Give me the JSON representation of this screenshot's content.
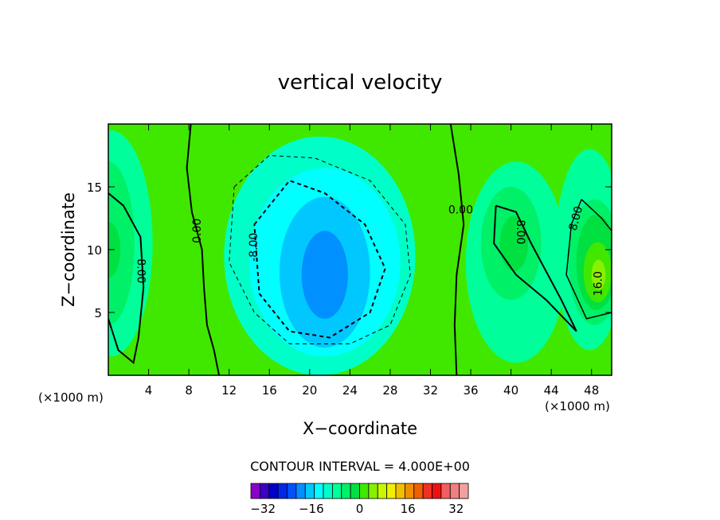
{
  "chart_data": {
    "type": "contour",
    "title": "vertical velocity",
    "xlabel": "X−coordinate",
    "ylabel": "Z−coordinate",
    "x_unit_left": "(×1000 m)",
    "x_unit_right": "(×1000 m)",
    "xlim": [
      0,
      50
    ],
    "ylim": [
      0,
      20
    ],
    "x_ticks": [
      4,
      8,
      12,
      16,
      20,
      24,
      28,
      32,
      36,
      40,
      44,
      48
    ],
    "y_ticks": [
      5,
      10,
      15
    ],
    "contour_interval_text": "CONTOUR INTERVAL = 4.000E+00",
    "contour_labels": [
      "0.00",
      "0.00",
      "8.00",
      "-8.00",
      "8.00",
      "8.00",
      "16.0"
    ],
    "colorbar": {
      "min": -36,
      "max": 36,
      "step": 4,
      "tick_values": [
        -32,
        -16,
        0,
        16,
        32
      ],
      "tick_labels": [
        "−32",
        "−16",
        "0",
        "16",
        "32"
      ],
      "colors": [
        "#8a00c8",
        "#3c00c8",
        "#0000c8",
        "#0028e6",
        "#0050ff",
        "#0090ff",
        "#00c8ff",
        "#00ffff",
        "#00ffc8",
        "#00ff9a",
        "#00f068",
        "#00e040",
        "#40e800",
        "#88f000",
        "#c8f800",
        "#f0f000",
        "#f0c000",
        "#f09000",
        "#f06000",
        "#f03020",
        "#f01010",
        "#f06060",
        "#f08080",
        "#f0a0a0"
      ]
    },
    "features": [
      {
        "name": "updraft-left",
        "x": 1,
        "z": 10,
        "peak": 10
      },
      {
        "name": "updraft-right-mid",
        "x": 40.5,
        "z": 10.5,
        "peak": 12
      },
      {
        "name": "updraft-right-core",
        "x": 48,
        "z": 8.5,
        "peak": 18
      },
      {
        "name": "downdraft-center",
        "x": 21.5,
        "z": 8,
        "peak": -16
      }
    ]
  }
}
